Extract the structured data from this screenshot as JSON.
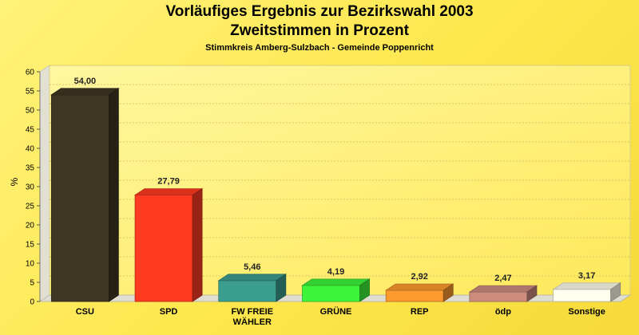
{
  "chart_data": {
    "type": "bar",
    "title": "Vorläufiges Ergebnis zur Bezirkswahl 2003",
    "subtitle": "Zweitstimmen in Prozent",
    "caption": "Stimmkreis Amberg-Sulzbach - Gemeinde Poppenricht",
    "ylabel": "%",
    "xlabel": "",
    "ylim": [
      0,
      60
    ],
    "yticks": [
      0,
      5,
      10,
      15,
      20,
      25,
      30,
      35,
      40,
      45,
      50,
      55,
      60
    ],
    "grid": true,
    "categories": [
      "CSU",
      "SPD",
      "FW FREIE WÄHLER",
      "GRÜNE",
      "REP",
      "ödp",
      "Sonstige"
    ],
    "category_lines": [
      [
        "CSU"
      ],
      [
        "SPD"
      ],
      [
        "FW FREIE",
        "WÄHLER"
      ],
      [
        "GRÜNE"
      ],
      [
        "REP"
      ],
      [
        "ödp"
      ],
      [
        "Sonstige"
      ]
    ],
    "values": [
      54.0,
      27.79,
      5.46,
      4.19,
      2.92,
      2.47,
      3.17
    ],
    "value_labels": [
      "54,00",
      "27,79",
      "5,46",
      "4,19",
      "2,92",
      "2,47",
      "3,17"
    ],
    "colors": [
      "#3f3722",
      "#ff3a21",
      "#3c9e8e",
      "#3df53a",
      "#ff9a2e",
      "#cc8c7e",
      "#ffffee"
    ]
  }
}
